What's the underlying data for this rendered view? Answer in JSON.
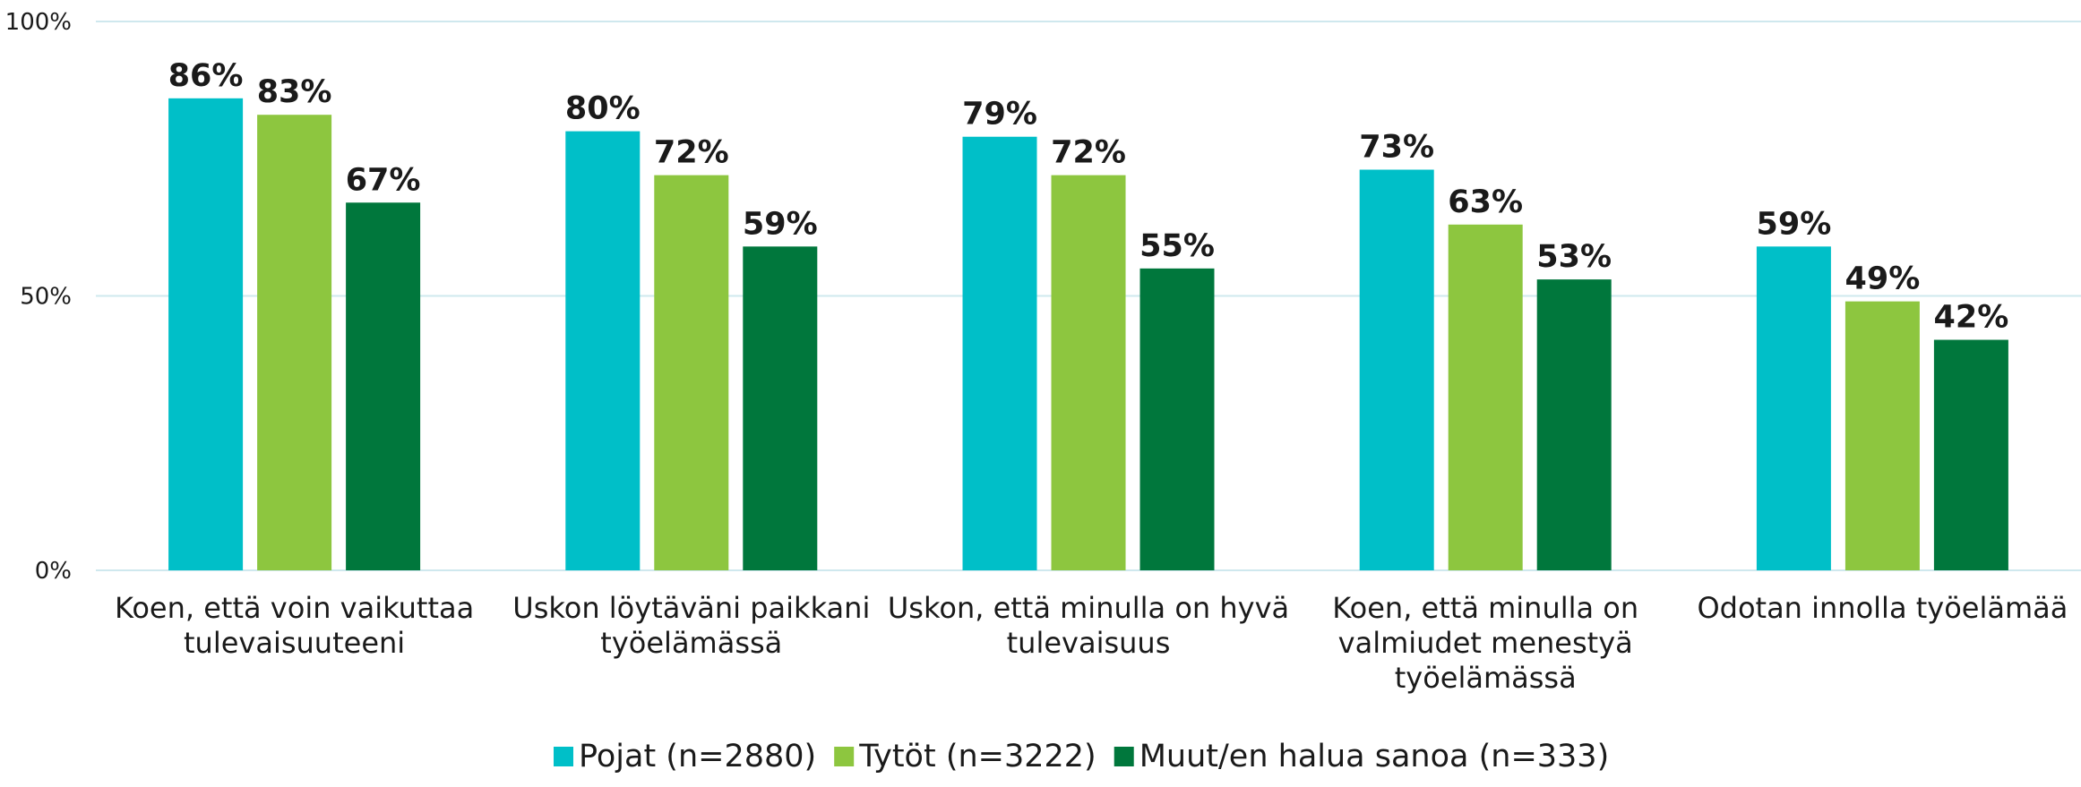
{
  "chart_data": {
    "type": "bar",
    "categories": [
      "Koen, että voin vaikuttaa\ntulevaisuuteeni",
      "Uskon löytäväni paikkani\ntyöelämässä",
      "Uskon, että minulla on hyvä\ntulevaisuus",
      "Koen, että minulla on\nvalmiudet menestyä\ntyöelämässä",
      "Odotan innolla työelämää"
    ],
    "series": [
      {
        "name": "Pojat (n=2880)",
        "color": "#00bfc8",
        "values": [
          86,
          80,
          79,
          73,
          59
        ],
        "value_labels": [
          "86%",
          "80%",
          "79%",
          "73%",
          "59%"
        ]
      },
      {
        "name": "Tytöt (n=3222)",
        "color": "#8dc63f",
        "values": [
          83,
          72,
          72,
          63,
          49
        ],
        "value_labels": [
          "83%",
          "72%",
          "72%",
          "63%",
          "49%"
        ]
      },
      {
        "name": "Muut/en halua sanoa (n=333)",
        "color": "#00773c",
        "values": [
          67,
          59,
          55,
          53,
          42
        ],
        "value_labels": [
          "67%",
          "59%",
          "55%",
          "53%",
          "42%"
        ]
      }
    ],
    "ylim": [
      0,
      100
    ],
    "yticks": [
      {
        "value": 0,
        "label": "0%"
      },
      {
        "value": 50,
        "label": "50%"
      },
      {
        "value": 100,
        "label": "100%"
      }
    ],
    "grid": true,
    "legend": "bottom"
  }
}
